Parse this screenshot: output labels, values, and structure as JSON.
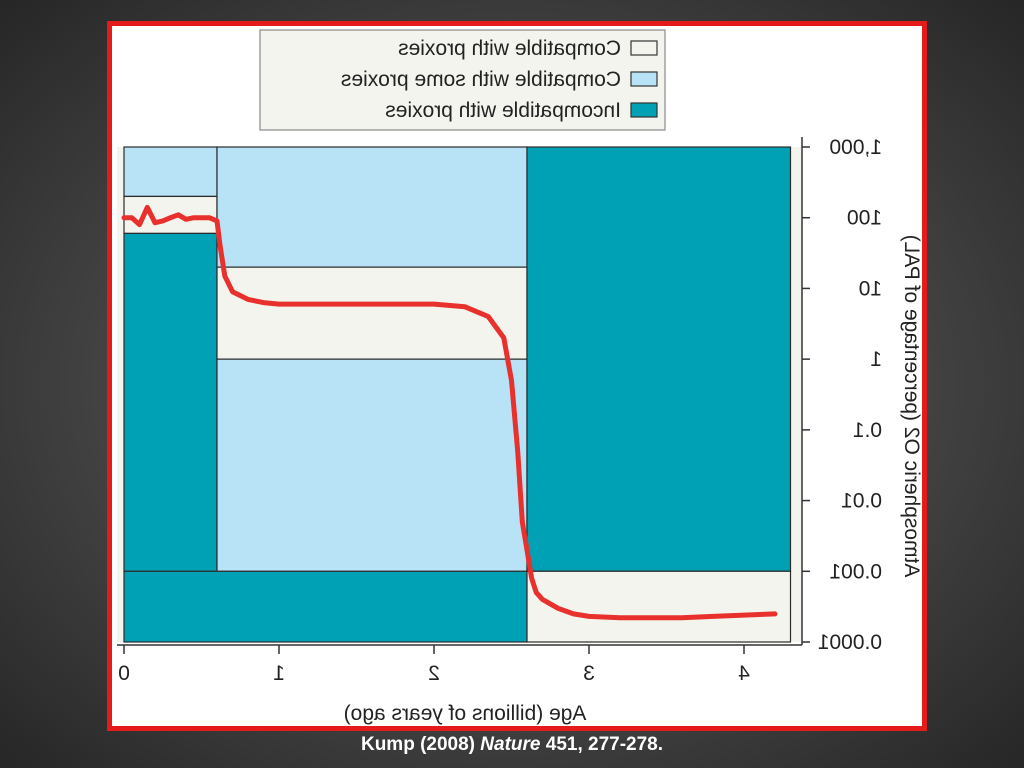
{
  "caption": {
    "authors": "Kump (2008)",
    "journal": "Nature",
    "rest": "451, 277-278."
  },
  "colors": {
    "frame": "#e41b1b",
    "compatible": "#f3f4ee",
    "some": "#b8e3f7",
    "incompatible": "#00a0b5",
    "curve": "#e8302d"
  },
  "chart_data": {
    "type": "area",
    "mirrored": true,
    "xlabel": "Age (billions of years ago)",
    "ylabel": "Atmospheric O2 (percentage of PAL)",
    "xlim": [
      0,
      4.3
    ],
    "ylim": [
      0.0001,
      1000
    ],
    "y_scale": "log",
    "x_ticks": [
      "0",
      "1",
      "2",
      "3",
      "4"
    ],
    "y_ticks": [
      "0.0001",
      "0.001",
      "0.01",
      "0.1",
      "1",
      "10",
      "100",
      "1,000"
    ],
    "legend": [
      {
        "label": "Compatible with proxies",
        "key": "compatible"
      },
      {
        "label": "Compatible with some proxies",
        "key": "some"
      },
      {
        "label": "Incompatible with proxies",
        "key": "incompatible"
      }
    ],
    "regions": [
      {
        "category": "some",
        "x": [
          0,
          0.6
        ],
        "y": [
          200,
          1000
        ]
      },
      {
        "category": "compatible",
        "x": [
          0,
          0.6
        ],
        "y": [
          60,
          200
        ]
      },
      {
        "category": "incompatible",
        "x": [
          0,
          0.6
        ],
        "y": [
          0.001,
          60
        ]
      },
      {
        "category": "some",
        "x": [
          0.6,
          2.6
        ],
        "y": [
          20,
          1000
        ]
      },
      {
        "category": "compatible",
        "x": [
          0.6,
          2.6
        ],
        "y": [
          1,
          20
        ]
      },
      {
        "category": "some",
        "x": [
          0.6,
          2.6
        ],
        "y": [
          0.001,
          1
        ]
      },
      {
        "category": "incompatible",
        "x": [
          0,
          2.6
        ],
        "y": [
          0.0001,
          0.001
        ]
      },
      {
        "category": "incompatible",
        "x": [
          2.6,
          4.3
        ],
        "y": [
          0.001,
          1000
        ]
      },
      {
        "category": "compatible",
        "x": [
          2.6,
          4.3
        ],
        "y": [
          0.0001,
          0.001
        ]
      }
    ],
    "series": [
      {
        "x": [
          0,
          0.05,
          0.1,
          0.15,
          0.2,
          0.25,
          0.3,
          0.35,
          0.4,
          0.45,
          0.5,
          0.55,
          0.6,
          0.62,
          0.65,
          0.7,
          0.8,
          0.9,
          1.0,
          1.2,
          1.4,
          1.6,
          1.8,
          2.0,
          2.2,
          2.35,
          2.45,
          2.5,
          2.54,
          2.57,
          2.6,
          2.63,
          2.66,
          2.7,
          2.8,
          2.9,
          3.0,
          3.2,
          3.4,
          3.6,
          3.8,
          4.0,
          4.2
        ],
        "y": [
          100,
          100,
          80,
          140,
          85,
          90,
          100,
          110,
          95,
          100,
          100,
          100,
          90,
          40,
          15,
          9,
          7,
          6.3,
          6,
          6,
          6,
          6,
          6,
          6,
          5.5,
          4,
          2,
          0.5,
          0.05,
          0.005,
          0.002,
          0.0008,
          0.0005,
          0.0004,
          0.0003,
          0.00025,
          0.00023,
          0.00022,
          0.00022,
          0.00022,
          0.00023,
          0.00024,
          0.00025
        ]
      }
    ]
  }
}
